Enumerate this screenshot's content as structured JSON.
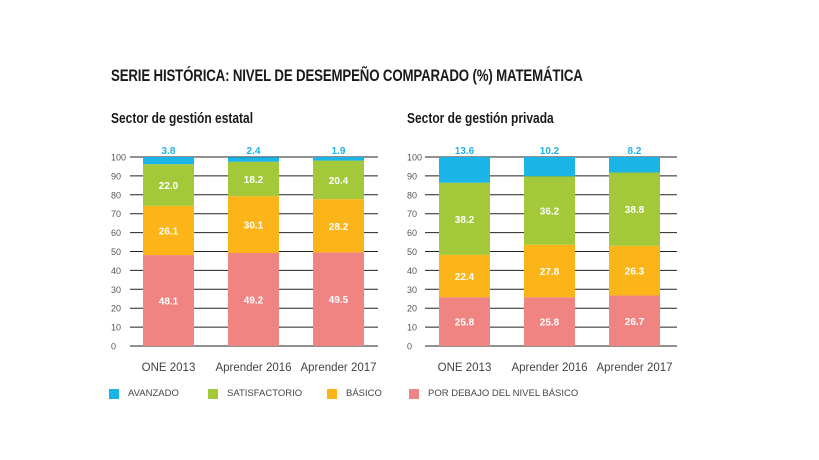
{
  "title_main": "SERIE HISTÓRICA: NIVEL DE DESEMPEÑO COMPARADO (%)",
  "title_bold": "MATEMÁTICA",
  "chart_data": [
    {
      "type": "bar",
      "stacked": true,
      "title": "Sector de gestión estatal",
      "categories": [
        "ONE 2013",
        "Aprender 2016",
        "Aprender 2017"
      ],
      "ylim": [
        0,
        100
      ],
      "yticks": [
        "0",
        "10",
        "20",
        "30",
        "40",
        "50",
        "60",
        "70",
        "80",
        "90",
        "100"
      ],
      "grid": true,
      "series": [
        {
          "name": "POR DEBAJO DEL NIVEL BÁSICO",
          "color": "#f08482",
          "values": [
            48.1,
            49.2,
            49.5
          ],
          "labels": [
            "48.1",
            "49.2",
            "49.5"
          ]
        },
        {
          "name": "BÁSICO",
          "color": "#fbb518",
          "values": [
            26.1,
            30.1,
            28.2
          ],
          "labels": [
            "26.1",
            "30.1",
            "28.2"
          ]
        },
        {
          "name": "SATISFACTORIO",
          "color": "#a3c93a",
          "values": [
            22.0,
            18.2,
            20.4
          ],
          "labels": [
            "22.0",
            "18.2",
            "20.4"
          ]
        },
        {
          "name": "AVANZADO",
          "color": "#1ab4e6",
          "values": [
            3.8,
            2.4,
            1.9
          ],
          "labels": [
            "3.8",
            "2.4",
            "1.9"
          ]
        }
      ]
    },
    {
      "type": "bar",
      "stacked": true,
      "title": "Sector de gestión privada",
      "categories": [
        "ONE 2013",
        "Aprender 2016",
        "Aprender 2017"
      ],
      "ylim": [
        0,
        100
      ],
      "yticks": [
        "0",
        "10",
        "20",
        "30",
        "40",
        "50",
        "60",
        "70",
        "80",
        "90",
        "100"
      ],
      "grid": true,
      "series": [
        {
          "name": "POR DEBAJO DEL NIVEL BÁSICO",
          "color": "#f08482",
          "values": [
            25.8,
            25.8,
            26.7
          ],
          "labels": [
            "25.8",
            "25.8",
            "26.7"
          ]
        },
        {
          "name": "BÁSICO",
          "color": "#fbb518",
          "values": [
            22.4,
            27.8,
            26.3
          ],
          "labels": [
            "22.4",
            "27.8",
            "26.3"
          ]
        },
        {
          "name": "SATISFACTORIO",
          "color": "#a3c93a",
          "values": [
            38.2,
            36.2,
            38.8
          ],
          "labels": [
            "38.2",
            "36.2",
            "38.8"
          ]
        },
        {
          "name": "AVANZADO",
          "color": "#1ab4e6",
          "values": [
            13.6,
            10.2,
            8.2
          ],
          "labels": [
            "13.6",
            "10.2",
            "8.2"
          ]
        }
      ]
    }
  ],
  "legend": [
    {
      "label": "AVANZADO",
      "color": "#1ab4e6"
    },
    {
      "label": "SATISFACTORIO",
      "color": "#a3c93a"
    },
    {
      "label": "BÁSICO",
      "color": "#fbb518"
    },
    {
      "label": "POR DEBAJO DEL NIVEL BÁSICO",
      "color": "#f08482"
    }
  ]
}
